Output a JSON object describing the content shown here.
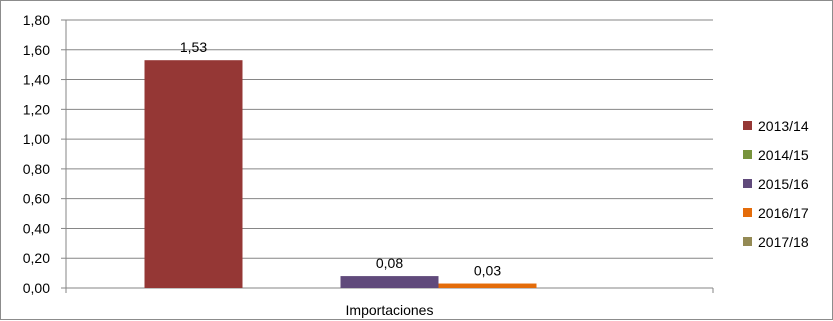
{
  "chart_data": {
    "type": "bar",
    "categories": [
      "Importaciones"
    ],
    "series": [
      {
        "name": "2013/14",
        "values": [
          1.53
        ],
        "color": "#953735",
        "label": "1,53"
      },
      {
        "name": "2014/15",
        "values": [
          0
        ],
        "color": "#77933C",
        "label": ""
      },
      {
        "name": "2015/16",
        "values": [
          0.08
        ],
        "color": "#604A7B",
        "label": "0,08"
      },
      {
        "name": "2016/17",
        "values": [
          0.03
        ],
        "color": "#E46C0A",
        "label": "0,03"
      },
      {
        "name": "2017/18",
        "values": [
          0
        ],
        "color": "#948A54",
        "label": ""
      }
    ],
    "y_ticks": [
      "0,00",
      "0,20",
      "0,40",
      "0,60",
      "0,80",
      "1,00",
      "1,20",
      "1,40",
      "1,60",
      "1,80"
    ],
    "ylim": [
      0,
      1.8
    ],
    "grid": true,
    "legend_position": "right"
  }
}
